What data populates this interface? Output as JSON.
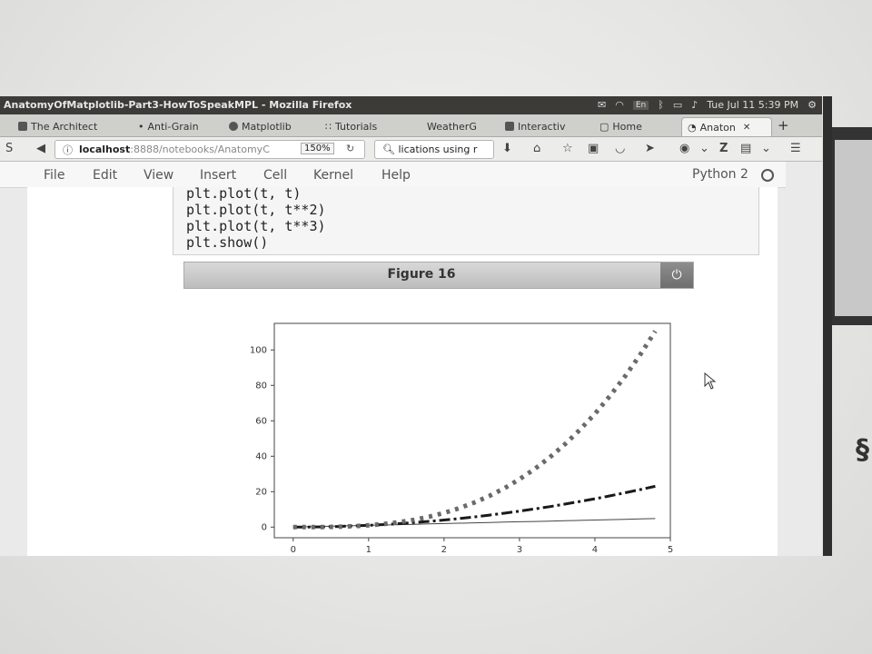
{
  "window": {
    "title": "AnatomyOfMatplotlib-Part3-HowToSpeakMPL - Mozilla Firefox",
    "tray": {
      "lang": "En",
      "datetime": "Tue Jul 11  5:39 PM"
    }
  },
  "tabs": [
    {
      "label": "The Architect"
    },
    {
      "label": "Anti-Grain"
    },
    {
      "label": "Matplotlib"
    },
    {
      "label": "Tutorials"
    },
    {
      "label": "WeatherG"
    },
    {
      "label": "Interactiv"
    },
    {
      "label": "Home"
    },
    {
      "label": "Anaton"
    }
  ],
  "navbar": {
    "url_host": "localhost",
    "url_path": ":8888/notebooks/AnatomyC",
    "zoom": "150%",
    "search_text": "lications using r"
  },
  "notebook": {
    "menu": [
      "File",
      "Edit",
      "View",
      "Insert",
      "Cell",
      "Kernel",
      "Help"
    ],
    "kernel": "Python 2",
    "code_lines": [
      "plt.plot(t, t)",
      "plt.plot(t, t**2)",
      "plt.plot(t, t**3)",
      "plt.show()"
    ],
    "figure_title": "Figure 16"
  },
  "chart_data": {
    "type": "line",
    "title": "",
    "xlabel": "",
    "ylabel": "",
    "xlim": [
      -0.25,
      5
    ],
    "ylim": [
      -6,
      115
    ],
    "xticks": [
      0,
      1,
      2,
      3,
      4,
      5
    ],
    "yticks": [
      0,
      20,
      40,
      60,
      80,
      100
    ],
    "x": [
      0.0,
      0.2,
      0.4,
      0.6,
      0.8,
      1.0,
      1.2,
      1.4,
      1.6,
      1.8,
      2.0,
      2.2,
      2.4,
      2.6,
      2.8,
      3.0,
      3.2,
      3.4,
      3.6,
      3.8,
      4.0,
      4.2,
      4.4,
      4.6,
      4.8
    ],
    "series": [
      {
        "values": [
          0.0,
          0.2,
          0.4,
          0.6,
          0.8,
          1.0,
          1.2,
          1.4,
          1.6,
          1.8,
          2.0,
          2.2,
          2.4,
          2.6,
          2.8,
          3.0,
          3.2,
          3.4,
          3.6,
          3.8,
          4.0,
          4.2,
          4.4,
          4.6,
          4.8
        ],
        "style": "solid-thin"
      },
      {
        "values": [
          0.0,
          0.04,
          0.16,
          0.36,
          0.64,
          1.0,
          1.44,
          1.96,
          2.56,
          3.24,
          4.0,
          4.84,
          5.76,
          6.76,
          7.84,
          9.0,
          10.24,
          11.56,
          12.96,
          14.44,
          16.0,
          17.64,
          19.36,
          21.16,
          23.04
        ],
        "style": "dash-dot"
      },
      {
        "values": [
          0.0,
          0.008,
          0.064,
          0.216,
          0.512,
          1.0,
          1.728,
          2.744,
          4.096,
          5.832,
          8.0,
          10.648,
          13.824,
          17.576,
          21.952,
          27.0,
          32.768,
          39.304,
          46.656,
          54.872,
          64.0,
          74.088,
          85.184,
          97.336,
          110.592
        ],
        "style": "dotted-thick"
      }
    ],
    "colors": {
      "line1": "#444444",
      "line2": "#1a1a1a",
      "line3": "#6a6a6a"
    },
    "grid": false,
    "legend": "none"
  }
}
